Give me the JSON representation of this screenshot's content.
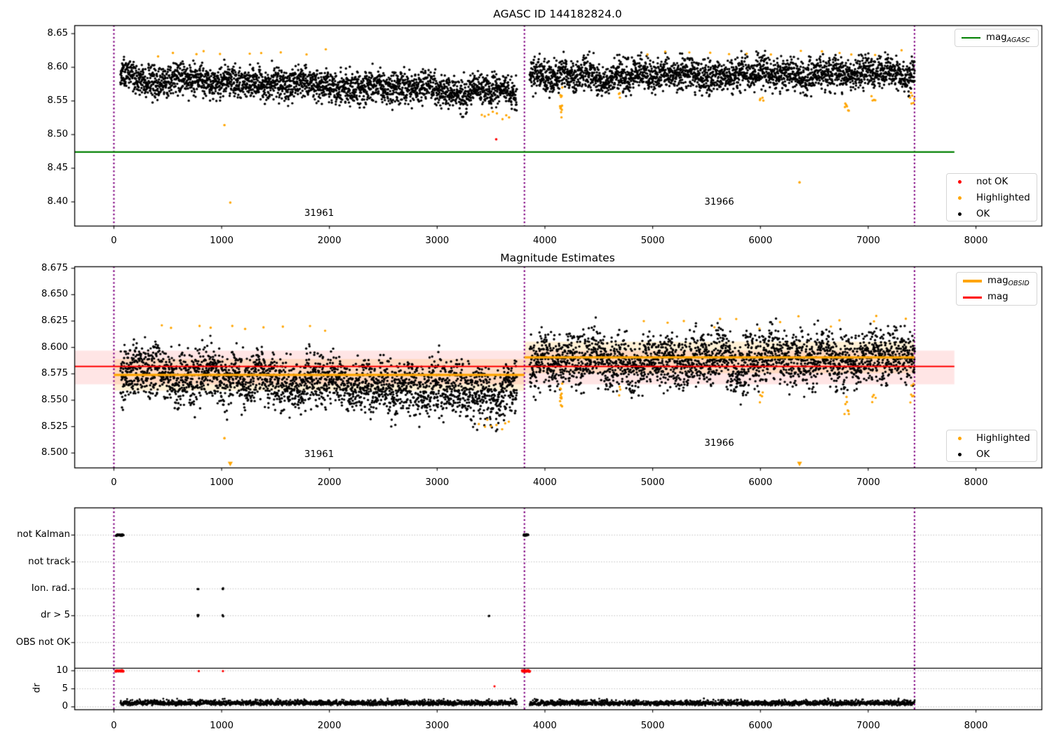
{
  "figure": {
    "background": "#ffffff",
    "colors": {
      "ok": "#000000",
      "highlighted": "#ffa500",
      "not_ok": "#ff0000",
      "mag_agasc": "#008000",
      "mag": "#ff0000",
      "mag_obsid": "#ffa500",
      "vline": "#800080",
      "band_mag": "rgba(255,0,0,0.10)",
      "band_obsid": "rgba(255,165,0,0.16)",
      "grid": "#b5b5b5",
      "threshold": "#000000"
    }
  },
  "chart_data": [
    {
      "id": "p1",
      "type": "scatter",
      "title": "AGASC ID 144182824.0",
      "x_ticks": [
        0,
        1000,
        2000,
        3000,
        4000,
        5000,
        6000,
        7000,
        8000
      ],
      "x_tick_labels": [
        "0",
        "1000",
        "2000",
        "3000",
        "4000",
        "5000",
        "6000",
        "7000",
        "8000"
      ],
      "y_ticks": [
        8.65,
        8.6,
        8.55,
        8.5,
        8.45,
        8.4
      ],
      "y_tick_labels": [
        "8.65",
        "8.60",
        "8.55",
        "8.50",
        "8.45",
        "8.40"
      ],
      "xlim": [
        -367,
        8609
      ],
      "ylim": [
        8.3646,
        8.6625
      ],
      "vlines": [
        0,
        3810,
        7430
      ],
      "agasc_line": {
        "label": "mag_AGASC",
        "value": 8.474,
        "x0": -367,
        "x1": 7800
      },
      "legend_line": {
        "text": "mag",
        "sub": "AGASC"
      },
      "legend_markers": [
        {
          "label": "not OK",
          "color_key": "not_ok"
        },
        {
          "label": "Highlighted",
          "color_key": "highlighted"
        },
        {
          "label": "OK",
          "color_key": "ok"
        }
      ],
      "annotations": [
        {
          "text": "31961",
          "x": 1905,
          "y": 8.382
        },
        {
          "text": "31966",
          "x": 5618,
          "y": 8.399
        }
      ],
      "series": [
        {
          "name": "ok-31961",
          "ck": "ok",
          "x0": 60,
          "x1": 3740,
          "n": 2600,
          "y0": 8.5855,
          "y1": 8.5635,
          "s": 0.0115,
          "w": 1,
          "r": 1.7
        },
        {
          "name": "ok-31966",
          "ck": "ok",
          "x0": 3858,
          "x1": 7432,
          "n": 2500,
          "y0": 8.5875,
          "y1": 8.5925,
          "s": 0.0115,
          "w": 1,
          "r": 1.7
        },
        {
          "name": "hl-top-a",
          "ck": "highlighted",
          "x0": 300,
          "x1": 1990,
          "n": 10,
          "y0": 8.621,
          "y1": 8.621,
          "s": 0.0025,
          "w": 0,
          "r": 1.7
        },
        {
          "name": "hl-low-a",
          "ck": "highlighted",
          "x0": 3380,
          "x1": 3700,
          "n": 8,
          "y0": 8.5295,
          "y1": 8.5295,
          "s": 0.004,
          "w": 0,
          "r": 1.7
        },
        {
          "name": "hl-streak-4150",
          "ck": "highlighted",
          "x0": 4140,
          "x1": 4162,
          "n": 13,
          "y0": 8.551,
          "y1": 8.551,
          "s": 0.0095,
          "w": 0,
          "r": 1.7
        },
        {
          "name": "hl-dip-4690",
          "ck": "highlighted",
          "x0": 4684,
          "x1": 4700,
          "n": 3,
          "y0": 8.5575,
          "y1": 8.5575,
          "s": 0.003,
          "w": 0,
          "r": 1.7
        },
        {
          "name": "hl-dip-6000",
          "ck": "highlighted",
          "x0": 5988,
          "x1": 6030,
          "n": 4,
          "y0": 8.551,
          "y1": 8.551,
          "s": 0.004,
          "w": 0,
          "r": 1.7
        },
        {
          "name": "hl-dip-6800",
          "ck": "highlighted",
          "x0": 6780,
          "x1": 6825,
          "n": 6,
          "y0": 8.5415,
          "y1": 8.5415,
          "s": 0.005,
          "w": 0,
          "r": 1.7
        },
        {
          "name": "hl-dip-7050",
          "ck": "highlighted",
          "x0": 7030,
          "x1": 7070,
          "n": 4,
          "y0": 8.552,
          "y1": 8.552,
          "s": 0.004,
          "w": 0,
          "r": 1.7
        },
        {
          "name": "hl-dip-7400",
          "ck": "highlighted",
          "x0": 7386,
          "x1": 7428,
          "n": 6,
          "y0": 8.553,
          "y1": 8.553,
          "s": 0.005,
          "w": 0,
          "r": 1.7
        },
        {
          "name": "hl-top-b",
          "ck": "highlighted",
          "x0": 4860,
          "x1": 7420,
          "n": 13,
          "y0": 8.6225,
          "y1": 8.6225,
          "s": 0.003,
          "w": 0,
          "r": 1.7
        }
      ],
      "points": {
        "highlighted": [
          [
            1026,
            8.514
          ],
          [
            1080,
            8.399
          ],
          [
            6363,
            8.429
          ]
        ],
        "not_ok": [
          [
            3548,
            8.493
          ]
        ]
      }
    },
    {
      "id": "p2",
      "type": "scatter",
      "title": "Magnitude Estimates",
      "x_ticks": [
        0,
        1000,
        2000,
        3000,
        4000,
        5000,
        6000,
        7000,
        8000
      ],
      "x_tick_labels": [
        "0",
        "1000",
        "2000",
        "3000",
        "4000",
        "5000",
        "6000",
        "7000",
        "8000"
      ],
      "y_ticks": [
        8.675,
        8.65,
        8.625,
        8.6,
        8.575,
        8.55,
        8.525,
        8.5
      ],
      "y_tick_labels": [
        "8.675",
        "8.650",
        "8.625",
        "8.600",
        "8.575",
        "8.550",
        "8.525",
        "8.500"
      ],
      "xlim": [
        -367,
        8609
      ],
      "ylim": [
        8.4862,
        8.6768
      ],
      "vlines": [
        0,
        3810,
        7430
      ],
      "mag_line": {
        "label": "mag",
        "value": 8.582,
        "band": [
          8.565,
          8.597
        ],
        "x0": -367,
        "x1": 7800
      },
      "obsid_segments": [
        {
          "obsid": "31961",
          "x0": 0,
          "x1": 3810,
          "value": 8.574,
          "band": [
            8.559,
            8.589
          ]
        },
        {
          "obsid": "31966",
          "x0": 3810,
          "x1": 7430,
          "value": 8.5905,
          "band": [
            8.5755,
            8.6055
          ]
        }
      ],
      "legend_lines": [
        {
          "text": "mag",
          "sub": "OBSID",
          "color_key": "mag_obsid"
        },
        {
          "text": "mag",
          "sub": "",
          "color_key": "mag"
        }
      ],
      "legend_markers": [
        {
          "label": "Highlighted",
          "color_key": "highlighted"
        },
        {
          "label": "OK",
          "color_key": "ok"
        }
      ],
      "annotations": [
        {
          "text": "31961",
          "x": 1905,
          "y": 8.498
        },
        {
          "text": "31966",
          "x": 5618,
          "y": 8.509
        }
      ],
      "series": [
        {
          "name": "ok-31961",
          "ck": "ok",
          "x0": 60,
          "x1": 3740,
          "n": 2600,
          "y0": 8.578,
          "y1": 8.5565,
          "s": 0.0125,
          "w": 1,
          "r": 1.7
        },
        {
          "name": "ok-31966",
          "ck": "ok",
          "x0": 3858,
          "x1": 7432,
          "n": 2500,
          "y0": 8.5865,
          "y1": 8.5915,
          "s": 0.0125,
          "w": 1,
          "r": 1.7
        },
        {
          "name": "hl-top-a",
          "ck": "highlighted",
          "x0": 300,
          "x1": 1990,
          "n": 10,
          "y0": 8.6195,
          "y1": 8.6195,
          "s": 0.0025,
          "w": 0,
          "r": 1.7
        },
        {
          "name": "hl-low-a",
          "ck": "highlighted",
          "x0": 3380,
          "x1": 3700,
          "n": 8,
          "y0": 8.527,
          "y1": 8.527,
          "s": 0.0035,
          "w": 0,
          "r": 1.7
        },
        {
          "name": "hl-streak-4150",
          "ck": "highlighted",
          "x0": 4140,
          "x1": 4162,
          "n": 13,
          "y0": 8.5525,
          "y1": 8.5525,
          "s": 0.0095,
          "w": 0,
          "r": 1.7
        },
        {
          "name": "hl-dip-4690",
          "ck": "highlighted",
          "x0": 4684,
          "x1": 4700,
          "n": 3,
          "y0": 8.5585,
          "y1": 8.5585,
          "s": 0.003,
          "w": 0,
          "r": 1.7
        },
        {
          "name": "hl-dip-6000",
          "ck": "highlighted",
          "x0": 5988,
          "x1": 6030,
          "n": 4,
          "y0": 8.552,
          "y1": 8.552,
          "s": 0.004,
          "w": 0,
          "r": 1.7
        },
        {
          "name": "hl-dip-6800",
          "ck": "highlighted",
          "x0": 6780,
          "x1": 6825,
          "n": 7,
          "y0": 8.541,
          "y1": 8.541,
          "s": 0.005,
          "w": 0,
          "r": 1.7
        },
        {
          "name": "hl-dip-7050",
          "ck": "highlighted",
          "x0": 7030,
          "x1": 7070,
          "n": 4,
          "y0": 8.553,
          "y1": 8.553,
          "s": 0.004,
          "w": 0,
          "r": 1.7
        },
        {
          "name": "hl-dip-7400",
          "ck": "highlighted",
          "x0": 7386,
          "x1": 7428,
          "n": 6,
          "y0": 8.5545,
          "y1": 8.5545,
          "s": 0.005,
          "w": 0,
          "r": 1.7
        },
        {
          "name": "hl-top-b",
          "ck": "highlighted",
          "x0": 4860,
          "x1": 7420,
          "n": 14,
          "y0": 8.6235,
          "y1": 8.6235,
          "s": 0.003,
          "w": 0,
          "r": 1.7
        }
      ],
      "points": {
        "highlighted": [
          [
            1026,
            8.514
          ]
        ]
      },
      "clipped_low_markers": [
        1080,
        6363
      ]
    },
    {
      "id": "p3",
      "type": "flags_and_dr",
      "ylabel": "dr",
      "x_ticks": [
        0,
        1000,
        2000,
        3000,
        4000,
        5000,
        6000,
        7000,
        8000
      ],
      "x_tick_labels": [
        "0",
        "1000",
        "2000",
        "3000",
        "4000",
        "5000",
        "6000",
        "7000",
        "8000"
      ],
      "flag_labels": [
        "not Kalman",
        "not track",
        "Ion. rad.",
        "dr > 5",
        "OBS not OK"
      ],
      "dr_ticks": [
        10,
        5,
        0
      ],
      "dr_tick_labels": [
        "10",
        "5",
        "0"
      ],
      "threshold_dr": 10.7,
      "vlines": [
        0,
        3810,
        7430
      ],
      "flag_points": {
        "not Kalman": [
          [
            18,
            90,
            26
          ],
          [
            3800,
            3846,
            16
          ]
        ],
        "not track": [],
        "Ion. rad.": [
          [
            776,
            786,
            3
          ],
          [
            1006,
            1016,
            3
          ]
        ],
        "dr > 5": [
          [
            776,
            786,
            3
          ],
          [
            1006,
            1016,
            3
          ],
          [
            3478,
            3486,
            2
          ]
        ],
        "OBS not OK": []
      },
      "dr_series": [
        {
          "name": "dr-31961",
          "x0": 60,
          "x1": 3740,
          "n": 1750
        },
        {
          "name": "dr-31966",
          "x0": 3858,
          "x1": 7432,
          "n": 1700
        }
      ],
      "dr_red": {
        "clusters": [
          [
            15,
            88,
            26
          ],
          [
            3788,
            3860,
            26
          ]
        ],
        "value": 9.95,
        "points": [
          [
            788,
            9.9
          ],
          [
            1012,
            9.9
          ],
          [
            3532,
            5.7
          ]
        ]
      }
    }
  ]
}
